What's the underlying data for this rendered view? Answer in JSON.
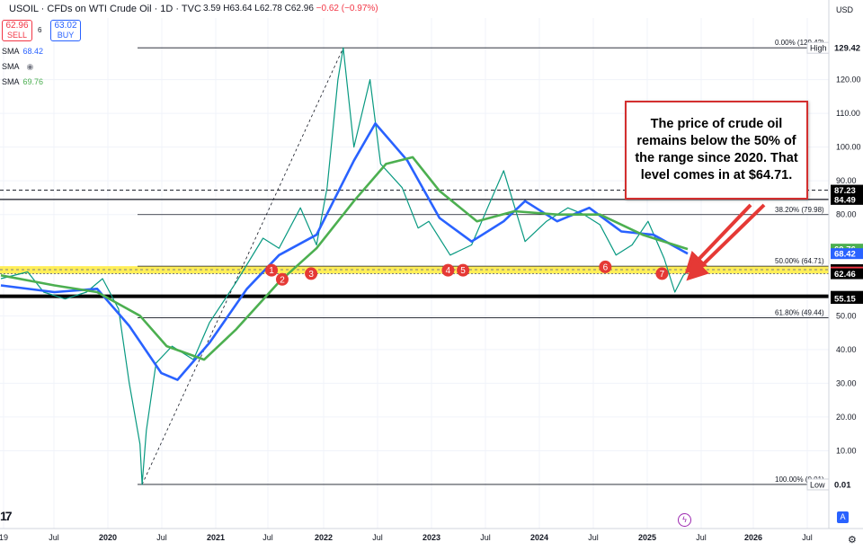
{
  "header": {
    "title": "USOIL · CFDs on WTI Crude Oil · 1D · TVC",
    "ohlc_visible": "3.59 H63.64 L62.78 C62.96",
    "change": "−0.62 (−0.97%)",
    "sell_price": "62.96",
    "sell_label": "SELL",
    "buy_price": "63.02",
    "buy_label": "BUY",
    "spread": "6",
    "currency": "USD"
  },
  "indicators": [
    {
      "label": "SMA",
      "value": "68.42",
      "color": "#2962ff"
    },
    {
      "label": "SMA",
      "value": "",
      "color": "#787b86"
    },
    {
      "label": "SMA",
      "value": "69.76",
      "color": "#4caf50"
    }
  ],
  "annotation": {
    "text": "The price of crude oil remains below the 50% of the range since 2020. That level comes in at $64.71."
  },
  "colors": {
    "price": "#089981",
    "price_down": "#f23645",
    "sma_blue": "#2962ff",
    "sma_green": "#4caf50",
    "highlight": "#ffeb3b",
    "marker": "#e53935",
    "arrow": "#e53935"
  },
  "icons": [
    "tradingview-logo-icon",
    "flash-icon",
    "auto-scale-icon",
    "gear-icon",
    "eye-icon"
  ],
  "chart_data": {
    "type": "line",
    "x_labels": [
      "19",
      "Jul",
      "2020",
      "Jul",
      "2021",
      "Jul",
      "2022",
      "Jul",
      "2023",
      "Jul",
      "2024",
      "Jul",
      "2025",
      "Jul",
      "2026",
      "Jul"
    ],
    "y_ticks": [
      10.0,
      20.0,
      30.0,
      40.0,
      50.0,
      80.0,
      90.0,
      100.0,
      110.0,
      120.0
    ],
    "ylim": [
      0,
      135
    ],
    "scale_badges": [
      {
        "value": "129.42",
        "label": "High",
        "dark": false
      },
      {
        "value": "87.23",
        "dark": true
      },
      {
        "value": "84.49",
        "dark": true
      },
      {
        "value": "69.76",
        "color": "#4caf50"
      },
      {
        "value": "68.42",
        "color": "#2962ff"
      },
      {
        "value": "63.68",
        "dark": true
      },
      {
        "value": "62.96",
        "color": "#f23645"
      },
      {
        "value": "62.46",
        "dark": true
      },
      {
        "value": "55.77",
        "dark": true
      },
      {
        "value": "55.15",
        "dark": true
      },
      {
        "value": "0.01",
        "label": "Low",
        "dark": false
      }
    ],
    "fib_levels": [
      {
        "label": "0.00% (129.42)",
        "value": 129.42
      },
      {
        "label": "38.20% (79.98)",
        "value": 79.98
      },
      {
        "label": "50.00% (64.71)",
        "value": 64.71
      },
      {
        "label": "61.80% (49.44)",
        "value": 49.44
      },
      {
        "label": "100.00% (0.01)",
        "value": 0.01
      }
    ],
    "horizontal_lines": [
      87.23,
      84.49,
      63.68,
      62.46,
      55.77
    ],
    "support_zone": [
      62.46,
      64.71
    ],
    "markers": [
      "1",
      "2",
      "3",
      "4",
      "5",
      "6",
      "7"
    ],
    "series": [
      {
        "name": "USOIL",
        "points": [
          [
            2019.0,
            61
          ],
          [
            2019.25,
            63
          ],
          [
            2019.4,
            57
          ],
          [
            2019.6,
            55
          ],
          [
            2019.8,
            57
          ],
          [
            2019.95,
            61
          ],
          [
            2020.1,
            52
          ],
          [
            2020.2,
            30
          ],
          [
            2020.3,
            12
          ],
          [
            2020.32,
            0.01
          ],
          [
            2020.36,
            16
          ],
          [
            2020.45,
            36
          ],
          [
            2020.6,
            41
          ],
          [
            2020.8,
            37
          ],
          [
            2020.95,
            48
          ],
          [
            2021.2,
            60
          ],
          [
            2021.45,
            73
          ],
          [
            2021.6,
            70
          ],
          [
            2021.8,
            82
          ],
          [
            2021.95,
            71
          ],
          [
            2022.05,
            88
          ],
          [
            2022.15,
            120
          ],
          [
            2022.2,
            129.42
          ],
          [
            2022.3,
            100
          ],
          [
            2022.45,
            120
          ],
          [
            2022.55,
            95
          ],
          [
            2022.75,
            88
          ],
          [
            2022.9,
            76
          ],
          [
            2023.0,
            78
          ],
          [
            2023.2,
            68
          ],
          [
            2023.4,
            71
          ],
          [
            2023.55,
            82
          ],
          [
            2023.7,
            93
          ],
          [
            2023.9,
            72
          ],
          [
            2024.1,
            78
          ],
          [
            2024.3,
            82
          ],
          [
            2024.45,
            80
          ],
          [
            2024.6,
            77
          ],
          [
            2024.75,
            68
          ],
          [
            2024.9,
            71
          ],
          [
            2025.05,
            78
          ],
          [
            2025.2,
            67
          ],
          [
            2025.3,
            57
          ],
          [
            2025.38,
            62
          ],
          [
            2025.42,
            62.96
          ]
        ]
      },
      {
        "name": "SMA",
        "values_ref": "blue",
        "points": [
          [
            2019.0,
            59
          ],
          [
            2019.5,
            57
          ],
          [
            2019.9,
            58
          ],
          [
            2020.2,
            47
          ],
          [
            2020.5,
            33
          ],
          [
            2020.65,
            31
          ],
          [
            2020.95,
            42
          ],
          [
            2021.3,
            58
          ],
          [
            2021.6,
            68
          ],
          [
            2021.95,
            74
          ],
          [
            2022.3,
            96
          ],
          [
            2022.5,
            107
          ],
          [
            2022.8,
            96
          ],
          [
            2023.1,
            79
          ],
          [
            2023.4,
            72
          ],
          [
            2023.7,
            78
          ],
          [
            2023.9,
            84
          ],
          [
            2024.2,
            78
          ],
          [
            2024.5,
            82
          ],
          [
            2024.8,
            75
          ],
          [
            2025.1,
            74
          ],
          [
            2025.42,
            68.42
          ]
        ]
      },
      {
        "name": "SMA",
        "values_ref": "green",
        "points": [
          [
            2019.0,
            62
          ],
          [
            2019.5,
            59
          ],
          [
            2019.9,
            57
          ],
          [
            2020.3,
            50
          ],
          [
            2020.55,
            41
          ],
          [
            2020.9,
            37
          ],
          [
            2021.2,
            46
          ],
          [
            2021.6,
            60
          ],
          [
            2021.95,
            70
          ],
          [
            2022.3,
            84
          ],
          [
            2022.6,
            95
          ],
          [
            2022.85,
            97
          ],
          [
            2023.1,
            87
          ],
          [
            2023.45,
            78
          ],
          [
            2023.8,
            81
          ],
          [
            2024.2,
            80
          ],
          [
            2024.6,
            80
          ],
          [
            2025.0,
            74
          ],
          [
            2025.42,
            69.76
          ]
        ]
      }
    ]
  }
}
